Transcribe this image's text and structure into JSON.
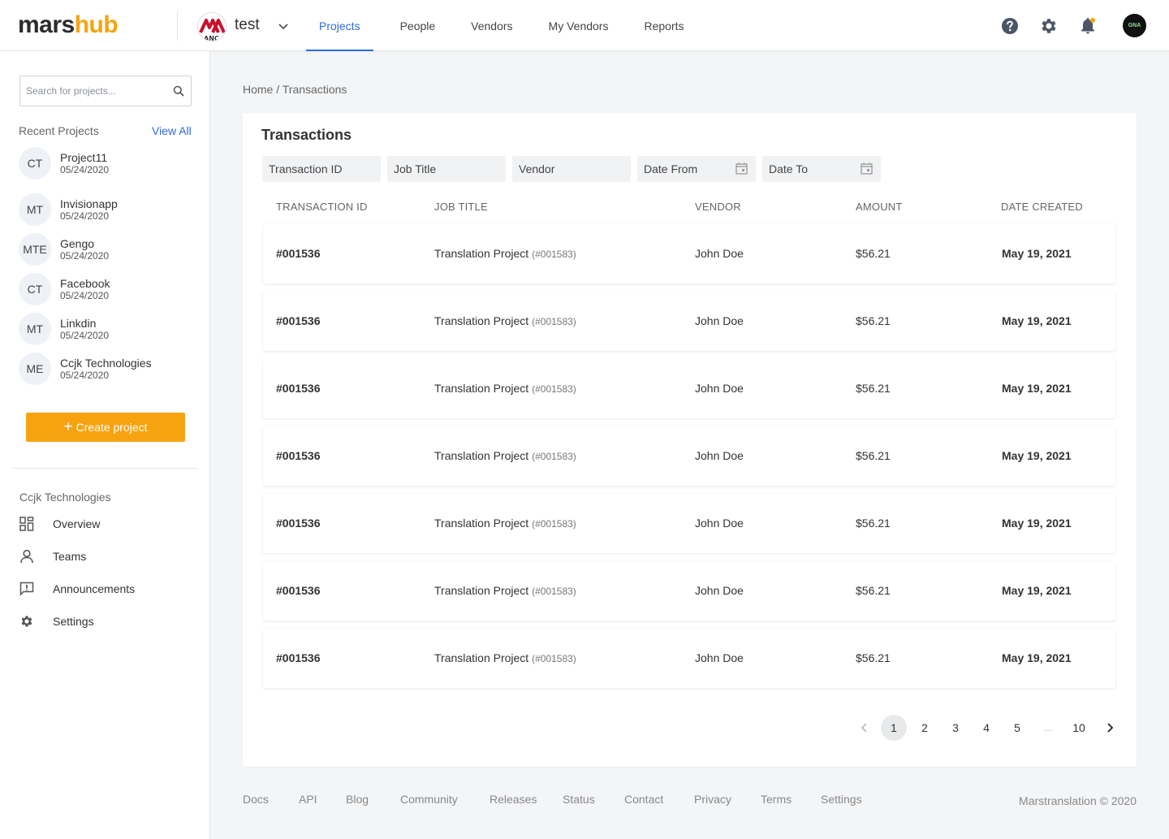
{
  "brand": {
    "part1": "mars",
    "part2": "hub",
    "accent": "#f7a310",
    "link_color": "#2e6bd9"
  },
  "workspace": {
    "name": "test",
    "logo_icon": "workspace-logo"
  },
  "nav": {
    "items": [
      {
        "label": "Projects",
        "active": true
      },
      {
        "label": "People",
        "active": false
      },
      {
        "label": "Vendors",
        "active": false
      },
      {
        "label": "My Vendors",
        "active": false
      },
      {
        "label": "Reports",
        "active": false
      }
    ]
  },
  "top_icons": [
    "help-icon",
    "gear-icon",
    "bell-icon"
  ],
  "user": {
    "avatar_text": "GNA"
  },
  "sidebar": {
    "search_placeholder": "Search for projects...",
    "recent_title": "Recent Projects",
    "view_all": "View All",
    "projects": [
      {
        "initials": "CT",
        "name": "Project11",
        "date": "05/24/2020"
      },
      {
        "initials": "MT",
        "name": "Invisionapp",
        "date": "05/24/2020"
      },
      {
        "initials": "MTE",
        "name": "Gengo",
        "date": "05/24/2020"
      },
      {
        "initials": "CT",
        "name": "Facebook",
        "date": "05/24/2020"
      },
      {
        "initials": "MT",
        "name": "Linkdin",
        "date": "05/24/2020"
      },
      {
        "initials": "ME",
        "name": "Ccjk Technologies",
        "date": "05/24/2020"
      }
    ],
    "create_label": "Create project",
    "org_name": "Ccjk Technologies",
    "links": [
      {
        "label": "Overview",
        "icon": "grid-icon"
      },
      {
        "label": "Teams",
        "icon": "user-icon"
      },
      {
        "label": "Announcements",
        "icon": "announcement-icon"
      },
      {
        "label": "Settings",
        "icon": "gear-icon"
      }
    ]
  },
  "breadcrumb": "Home / Transactions",
  "transactions": {
    "title": "Transactions",
    "filters": {
      "transaction_id": "Transaction ID",
      "job_title": "Job Title",
      "vendor": "Vendor",
      "date_from": "Date From",
      "date_to": "Date To"
    },
    "columns": [
      "TRANSACTION ID",
      "JOB TITLE",
      "VENDOR",
      "AMOUNT",
      "DATE CREATED"
    ],
    "rows": [
      {
        "id": "#001536",
        "job": "Translation Project",
        "job_id": "(#001583)",
        "vendor": "John Doe",
        "amount": "$56.21",
        "date": "May 19, 2021"
      },
      {
        "id": "#001536",
        "job": "Translation Project",
        "job_id": "(#001583)",
        "vendor": "John Doe",
        "amount": "$56.21",
        "date": "May 19, 2021"
      },
      {
        "id": "#001536",
        "job": "Translation Project",
        "job_id": "(#001583)",
        "vendor": "John Doe",
        "amount": "$56.21",
        "date": "May 19, 2021"
      },
      {
        "id": "#001536",
        "job": "Translation Project",
        "job_id": "(#001583)",
        "vendor": "John Doe",
        "amount": "$56.21",
        "date": "May 19, 2021"
      },
      {
        "id": "#001536",
        "job": "Translation Project",
        "job_id": "(#001583)",
        "vendor": "John Doe",
        "amount": "$56.21",
        "date": "May 19, 2021"
      },
      {
        "id": "#001536",
        "job": "Translation Project",
        "job_id": "(#001583)",
        "vendor": "John Doe",
        "amount": "$56.21",
        "date": "May 19, 2021"
      },
      {
        "id": "#001536",
        "job": "Translation Project",
        "job_id": "(#001583)",
        "vendor": "John Doe",
        "amount": "$56.21",
        "date": "May 19, 2021"
      }
    ],
    "pagination": {
      "pages": [
        "1",
        "2",
        "3",
        "4",
        "5",
        "...",
        "10"
      ],
      "current": "1"
    }
  },
  "footer": {
    "links": [
      "Docs",
      "API",
      "Blog",
      "Community",
      "Releases",
      "Status",
      "Contact",
      "Privacy",
      "Terms",
      "Settings"
    ],
    "copyright": "Marstranslation © 2020"
  }
}
